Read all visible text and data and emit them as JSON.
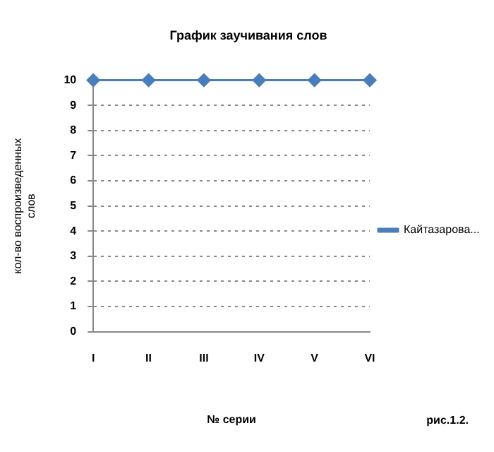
{
  "chart_data": {
    "type": "line",
    "title": "График заучивания слов",
    "xlabel": "№ серии",
    "ylabel": "кол-во воспроизведенных слов",
    "categories": [
      "I",
      "II",
      "III",
      "IV",
      "V",
      "VI"
    ],
    "series": [
      {
        "name": "Кайтазарова...",
        "color": "#4a7ebb",
        "values": [
          10,
          10,
          10,
          10,
          10,
          10
        ]
      }
    ],
    "ylim": [
      0,
      10
    ],
    "yticks": [
      0,
      1,
      2,
      3,
      4,
      5,
      6,
      7,
      8,
      9,
      10
    ],
    "grid": "y",
    "legend": "right",
    "marker": "diamond",
    "line_style": "solid",
    "annotations": [
      "рис.1.2."
    ]
  }
}
